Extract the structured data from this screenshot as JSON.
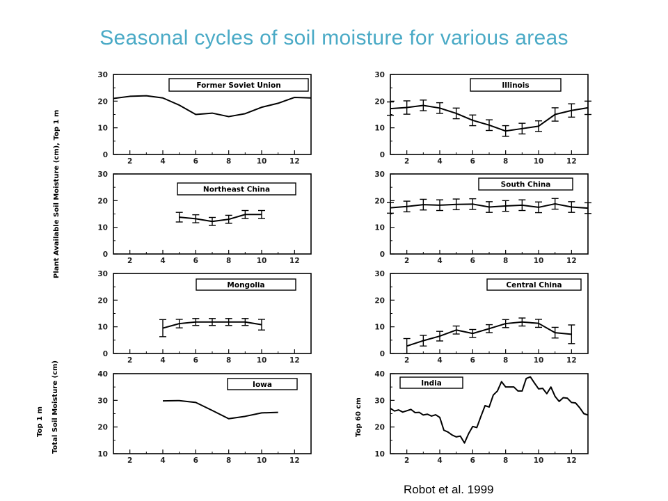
{
  "slide": {
    "title": "Seasonal cycles of soil moisture for various areas",
    "citation": "Robot et al. 1999"
  },
  "y_labels": {
    "top_group": "Plant Available Soil Moisture (cm), Top 1 m",
    "iowa_line1": "Top 1 m",
    "iowa_line2": "Total Soil Moisture (cm)",
    "india": "Top 60 cm"
  },
  "chart_data": [
    {
      "type": "line",
      "title": "Former Soviet Union",
      "xlim": [
        1,
        13
      ],
      "ylim": [
        0,
        30
      ],
      "x_ticks": [
        2,
        4,
        6,
        8,
        10,
        12
      ],
      "y_ticks": [
        0,
        10,
        20,
        30
      ],
      "series": [
        {
          "x": [
            1,
            2,
            3,
            4,
            5,
            6,
            7,
            8,
            9,
            10,
            11,
            12,
            13
          ],
          "y": [
            21,
            21.8,
            22,
            21.2,
            18.5,
            15,
            15.5,
            14.2,
            15.3,
            17.7,
            19.2,
            21.4,
            21.2
          ]
        }
      ]
    },
    {
      "type": "line",
      "title": "Illinois",
      "xlim": [
        1,
        13
      ],
      "ylim": [
        0,
        30
      ],
      "x_ticks": [
        2,
        4,
        6,
        8,
        10,
        12
      ],
      "y_ticks": [
        0,
        10,
        20,
        30
      ],
      "series": [
        {
          "x": [
            1,
            2,
            3,
            4,
            5,
            6,
            7,
            8,
            9,
            10,
            11,
            12,
            13
          ],
          "y": [
            17.2,
            17.6,
            18.4,
            17.4,
            15.4,
            12.8,
            11,
            8.8,
            9.7,
            10.6,
            15,
            16.5,
            17.5
          ],
          "err": [
            2.5,
            2.5,
            2,
            2,
            2,
            2,
            2,
            2,
            2,
            2,
            2.5,
            2.5,
            2.5
          ]
        }
      ]
    },
    {
      "type": "line",
      "title": "Northeast China",
      "xlim": [
        1,
        13
      ],
      "ylim": [
        0,
        30
      ],
      "x_ticks": [
        2,
        4,
        6,
        8,
        10,
        12
      ],
      "y_ticks": [
        0,
        10,
        20,
        30
      ],
      "series": [
        {
          "x": [
            5,
            6,
            7,
            8,
            9,
            10
          ],
          "y": [
            13.8,
            13.2,
            12.2,
            13,
            14.8,
            14.8
          ],
          "err": [
            1.8,
            1.5,
            1.5,
            1.5,
            1.5,
            1.5
          ]
        }
      ]
    },
    {
      "type": "line",
      "title": "South China",
      "xlim": [
        1,
        13
      ],
      "ylim": [
        0,
        30
      ],
      "x_ticks": [
        2,
        4,
        6,
        8,
        10,
        12
      ],
      "y_ticks": [
        0,
        10,
        20,
        30
      ],
      "series": [
        {
          "x": [
            1,
            2,
            3,
            4,
            5,
            6,
            7,
            8,
            9,
            10,
            11,
            12,
            13
          ],
          "y": [
            17.3,
            17.8,
            18.5,
            18.3,
            18.6,
            18.7,
            17.6,
            18,
            18.3,
            17.5,
            18.8,
            17.6,
            17.2
          ],
          "err": [
            2,
            2,
            2,
            2,
            2,
            2,
            2,
            2,
            2,
            2,
            2,
            2,
            2
          ]
        }
      ]
    },
    {
      "type": "line",
      "title": "Mongolia",
      "xlim": [
        1,
        13
      ],
      "ylim": [
        0,
        30
      ],
      "x_ticks": [
        2,
        4,
        6,
        8,
        10,
        12
      ],
      "y_ticks": [
        0,
        10,
        20,
        30
      ],
      "series": [
        {
          "x": [
            4,
            5,
            6,
            7,
            8,
            9,
            10
          ],
          "y": [
            9.5,
            11.2,
            11.8,
            11.8,
            11.8,
            11.8,
            10.8
          ],
          "err": [
            3.2,
            1.6,
            1.3,
            1.3,
            1.3,
            1.3,
            2
          ]
        }
      ]
    },
    {
      "type": "line",
      "title": "Central China",
      "xlim": [
        1,
        13
      ],
      "ylim": [
        0,
        30
      ],
      "x_ticks": [
        2,
        4,
        6,
        8,
        10,
        12
      ],
      "y_ticks": [
        0,
        10,
        20,
        30
      ],
      "series": [
        {
          "x": [
            2,
            3,
            4,
            5,
            6,
            7,
            8,
            9,
            10,
            11,
            12
          ],
          "y": [
            2.8,
            4.8,
            6.5,
            8.8,
            7.5,
            9.3,
            11.2,
            11.8,
            11.3,
            7.8,
            7.2
          ],
          "err": [
            2.8,
            2,
            1.8,
            1.5,
            1.5,
            1.5,
            1.5,
            1.5,
            1.5,
            2,
            3.5
          ]
        }
      ]
    },
    {
      "type": "line",
      "title": "Iowa",
      "xlim": [
        1,
        13
      ],
      "ylim": [
        10,
        40
      ],
      "x_ticks": [
        2,
        4,
        6,
        8,
        10,
        12
      ],
      "y_ticks": [
        10,
        20,
        30,
        40
      ],
      "series": [
        {
          "x": [
            4,
            5,
            6,
            7,
            8,
            9,
            10,
            11
          ],
          "y": [
            29.8,
            29.9,
            29.2,
            26.2,
            23.1,
            24,
            25.3,
            25.5
          ]
        }
      ]
    },
    {
      "type": "line",
      "title": "India",
      "xlim": [
        1,
        13
      ],
      "ylim": [
        10,
        40
      ],
      "x_ticks": [
        2,
        4,
        6,
        8,
        10,
        12
      ],
      "y_ticks": [
        10,
        20,
        30,
        40
      ],
      "series": [
        {
          "x": [
            1,
            1.25,
            1.5,
            1.75,
            2,
            2.25,
            2.5,
            2.75,
            3,
            3.25,
            3.5,
            3.75,
            4,
            4.25,
            4.5,
            4.75,
            5,
            5.25,
            5.5,
            5.75,
            6,
            6.25,
            6.5,
            6.75,
            7,
            7.25,
            7.5,
            7.75,
            8,
            8.25,
            8.5,
            8.75,
            9,
            9.25,
            9.5,
            9.75,
            10,
            10.25,
            10.5,
            10.75,
            11,
            11.25,
            11.5,
            11.75,
            12,
            12.25,
            12.5,
            12.75,
            13
          ],
          "y": [
            27,
            26,
            26.4,
            25.6,
            26.1,
            26.6,
            25.4,
            25.5,
            24.5,
            24.8,
            24.1,
            24.6,
            23.6,
            18.8,
            18.1,
            17,
            16.3,
            16.6,
            14,
            17.5,
            20.2,
            19.8,
            24,
            28,
            27.5,
            32,
            33.5,
            37,
            35,
            35,
            35,
            33.5,
            33.5,
            38.2,
            38.8,
            36.5,
            34.3,
            34.5,
            32.5,
            35,
            31.5,
            29.6,
            31,
            30.8,
            29.2,
            29,
            27.2,
            25,
            24.5
          ]
        }
      ]
    }
  ]
}
